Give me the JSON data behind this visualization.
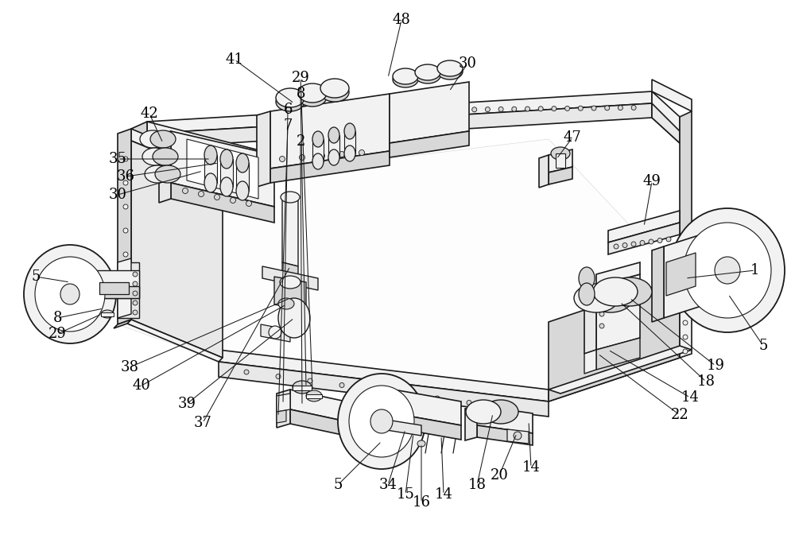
{
  "bg_color": "#ffffff",
  "lc": "#1a1a1a",
  "lc_thin": "#333333",
  "lc_fill": "#e8e8e8",
  "lc_fill2": "#d8d8d8",
  "lc_fill3": "#f2f2f2",
  "figsize": [
    10.0,
    6.78
  ],
  "dpi": 100,
  "label_fontsize": 13,
  "label_font": "DejaVu Serif"
}
